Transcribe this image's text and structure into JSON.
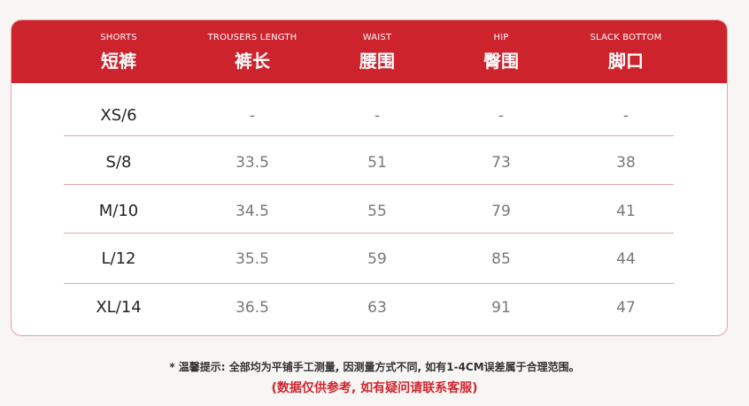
{
  "columns": [
    {
      "en": "SHORTS",
      "zh": "短裤"
    },
    {
      "en": "TROUSERS LENGTH",
      "zh": "裤长"
    },
    {
      "en": "WAIST",
      "zh": "腰围"
    },
    {
      "en": "HIP",
      "zh": "臀围"
    },
    {
      "en": "SLACK BOTTOM",
      "zh": "脚口"
    }
  ],
  "rows": [
    [
      "XS/6",
      "-",
      "-",
      "-",
      "-"
    ],
    [
      "S/8",
      "33.5",
      "51",
      "73",
      "38"
    ],
    [
      "M/10",
      "34.5",
      "55",
      "79",
      "41"
    ],
    [
      "L/12",
      "35.5",
      "59",
      "85",
      "44"
    ],
    [
      "XL/14",
      "36.5",
      "63",
      "91",
      "47"
    ]
  ],
  "notes": {
    "tip": "* 温馨提示: 全部均为平铺手工测量, 因测量方式不同, 如有1-4CM误差属于合理范围。",
    "disclaimer": "(数据仅供参考, 如有疑问请联系客服)"
  },
  "colors": {
    "header": "#cd232d",
    "divider": "#e7a4a7",
    "disclaimer": "#d1252f"
  }
}
